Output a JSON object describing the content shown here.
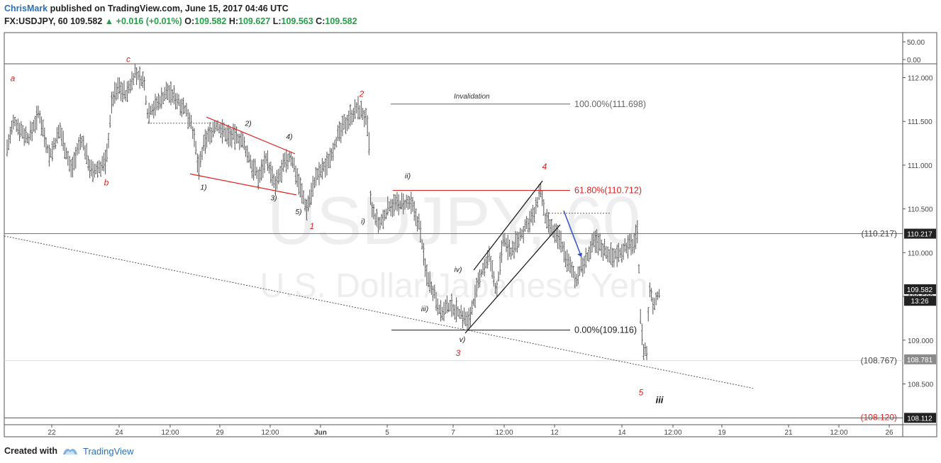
{
  "header": {
    "author": "ChrisMark",
    "published": "published on TradingView.com, June 15, 2017 04:46 UTC",
    "symbol": "FX:USDJPY, 60",
    "last": "109.582",
    "change_arrow": "▲",
    "change": "+0.016 (+0.01%)",
    "o_label": "O:",
    "o": "109.582",
    "h_label": "H:",
    "h": "109.627",
    "l_label": "L:",
    "l": "109.563",
    "c_label": "C:",
    "c": "109.582"
  },
  "footer": {
    "created_with": "Created with",
    "brand": "TradingView"
  },
  "colors": {
    "accent_blue": "#2d6fb6",
    "up_green": "#26a046",
    "wave_red": "#e02020",
    "bar_gray": "#555555",
    "watermark": "#eeeeee"
  },
  "chart_data": {
    "type": "ohlc",
    "watermark_symbol": "USDJPY, 60",
    "watermark_name": "U.S. Dollar/Japanese Yen",
    "indicator_axis_ticks": [
      "50.00",
      "0.00"
    ],
    "y_ticks": [
      112.0,
      111.5,
      111.0,
      110.5,
      110.0,
      109.5,
      109.0,
      108.5
    ],
    "y_tick_labels": [
      "112.000",
      "111.500",
      "111.000",
      "110.500",
      "110.000",
      "109.500",
      "109.000",
      "108.500"
    ],
    "ylim": [
      108.05,
      112.15
    ],
    "x_ticks": [
      "22",
      "24",
      "12:00",
      "29",
      "12:00",
      "Jun",
      "5",
      "7",
      "12:00",
      "12",
      "14",
      "12:00",
      "19",
      "21",
      "12:00",
      "26"
    ],
    "price_tags": [
      {
        "value": "110.217",
        "price": 110.217,
        "style": "dark"
      },
      {
        "value": "109.582",
        "price": 109.582,
        "style": "dark"
      },
      {
        "value": "13:26",
        "price": 109.45,
        "style": "dark"
      },
      {
        "value": "108.781",
        "price": 108.781,
        "style": "gray"
      },
      {
        "value": "108.112",
        "price": 108.112,
        "style": "dark"
      }
    ],
    "levels": [
      {
        "label": "(110.217)",
        "price": 110.217,
        "color": "#444444"
      },
      {
        "label": "(108.767)",
        "price": 108.767,
        "color": "#444444"
      },
      {
        "label": "(108.120)",
        "price": 108.12,
        "color": "#e02020"
      }
    ],
    "fibonacci": [
      {
        "label": "100.00%(111.698)",
        "price": 111.698,
        "color": "#666666"
      },
      {
        "label": "61.80%(110.712)",
        "price": 110.712,
        "color": "#e02020"
      },
      {
        "label": "0.00%(109.116)",
        "price": 109.116,
        "color": "#222222"
      }
    ],
    "invalidation_label": "Invalidation",
    "wave_labels_red": [
      {
        "text": "a",
        "x": 18,
        "price": 111.96
      },
      {
        "text": "b",
        "x": 150,
        "price": 110.77
      },
      {
        "text": "c",
        "x": 181,
        "price": 112.18
      },
      {
        "text": "1",
        "x": 440,
        "price": 110.27
      },
      {
        "text": "2",
        "x": 510,
        "price": 111.78
      },
      {
        "text": "3",
        "x": 646,
        "price": 108.82
      },
      {
        "text": "4",
        "x": 768,
        "price": 110.95
      },
      {
        "text": "5",
        "x": 904,
        "price": 108.37
      }
    ],
    "wave_labels_black": [
      {
        "text": "1)",
        "x": 287,
        "price": 110.72
      },
      {
        "text": "2)",
        "x": 350,
        "price": 111.45
      },
      {
        "text": "3)",
        "x": 386,
        "price": 110.6
      },
      {
        "text": "4)",
        "x": 408,
        "price": 111.3
      },
      {
        "text": "5)",
        "x": 421,
        "price": 110.44
      },
      {
        "text": "i)",
        "x": 512,
        "price": 110.33
      },
      {
        "text": "ii)",
        "x": 575,
        "price": 110.85
      },
      {
        "text": "iii)",
        "x": 599,
        "price": 109.33
      },
      {
        "text": "iv)",
        "x": 646,
        "price": 109.78
      },
      {
        "text": "v)",
        "x": 652,
        "price": 108.98
      }
    ],
    "wave_label_final": {
      "text": "iii",
      "x": 930,
      "price": 108.28
    },
    "ohlc_path": [
      [
        10,
        111.2
      ],
      [
        20,
        111.5
      ],
      [
        40,
        111.3
      ],
      [
        55,
        111.6
      ],
      [
        70,
        111.1
      ],
      [
        85,
        111.4
      ],
      [
        100,
        110.95
      ],
      [
        115,
        111.3
      ],
      [
        130,
        110.9
      ],
      [
        150,
        111.05
      ],
      [
        158,
        111.75
      ],
      [
        168,
        111.9
      ],
      [
        178,
        111.8
      ],
      [
        190,
        112.05
      ],
      [
        203,
        111.95
      ],
      [
        208,
        111.6
      ],
      [
        222,
        111.7
      ],
      [
        236,
        111.85
      ],
      [
        256,
        111.7
      ],
      [
        270,
        111.5
      ],
      [
        280,
        110.95
      ],
      [
        290,
        111.3
      ],
      [
        305,
        111.45
      ],
      [
        320,
        111.35
      ],
      [
        340,
        111.3
      ],
      [
        355,
        111.0
      ],
      [
        365,
        110.85
      ],
      [
        375,
        111.1
      ],
      [
        388,
        110.75
      ],
      [
        400,
        111.0
      ],
      [
        410,
        111.1
      ],
      [
        420,
        110.85
      ],
      [
        432,
        110.5
      ],
      [
        445,
        110.85
      ],
      [
        460,
        111.0
      ],
      [
        475,
        111.3
      ],
      [
        492,
        111.55
      ],
      [
        505,
        111.65
      ],
      [
        515,
        111.55
      ],
      [
        520,
        111.35
      ],
      [
        523,
        110.5
      ],
      [
        535,
        110.3
      ],
      [
        550,
        110.55
      ],
      [
        565,
        110.55
      ],
      [
        580,
        110.55
      ],
      [
        592,
        110.3
      ],
      [
        600,
        109.8
      ],
      [
        612,
        109.55
      ],
      [
        622,
        109.3
      ],
      [
        635,
        109.4
      ],
      [
        650,
        109.3
      ],
      [
        660,
        109.2
      ],
      [
        670,
        109.5
      ],
      [
        680,
        109.8
      ],
      [
        690,
        109.95
      ],
      [
        700,
        109.55
      ],
      [
        710,
        110.15
      ],
      [
        720,
        110.0
      ],
      [
        735,
        110.2
      ],
      [
        745,
        110.35
      ],
      [
        755,
        110.45
      ],
      [
        762,
        110.75
      ],
      [
        768,
        110.4
      ],
      [
        778,
        110.25
      ],
      [
        790,
        110.15
      ],
      [
        800,
        109.9
      ],
      [
        812,
        109.7
      ],
      [
        825,
        109.9
      ],
      [
        840,
        110.15
      ],
      [
        850,
        110.05
      ],
      [
        865,
        109.95
      ],
      [
        880,
        110.05
      ],
      [
        893,
        110.1
      ],
      [
        900,
        110.25
      ],
      [
        902,
        109.4
      ],
      [
        907,
        108.9
      ],
      [
        912,
        108.85
      ],
      [
        916,
        109.6
      ],
      [
        922,
        109.4
      ],
      [
        930,
        109.55
      ]
    ]
  }
}
